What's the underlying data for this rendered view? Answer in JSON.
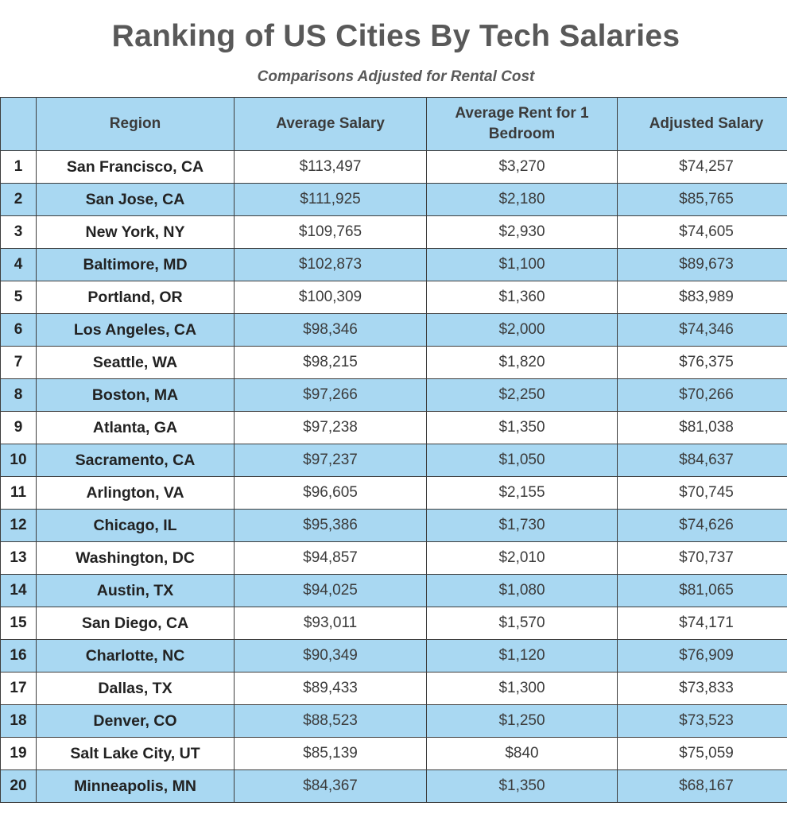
{
  "chart_data": {
    "type": "table",
    "title": "Ranking of US Cities By Tech Salaries",
    "subtitle": "Comparisons Adjusted for Rental Cost",
    "columns": [
      "",
      "Region",
      "Average Salary",
      "Average Rent for 1 Bedroom",
      "Adjusted Salary"
    ],
    "rows": [
      {
        "rank": "1",
        "region": "San Francisco, CA",
        "salary": "$113,497",
        "rent": "$3,270",
        "adjusted": "$74,257"
      },
      {
        "rank": "2",
        "region": "San Jose, CA",
        "salary": "$111,925",
        "rent": "$2,180",
        "adjusted": "$85,765"
      },
      {
        "rank": "3",
        "region": "New York, NY",
        "salary": "$109,765",
        "rent": "$2,930",
        "adjusted": "$74,605"
      },
      {
        "rank": "4",
        "region": "Baltimore, MD",
        "salary": "$102,873",
        "rent": "$1,100",
        "adjusted": "$89,673"
      },
      {
        "rank": "5",
        "region": "Portland, OR",
        "salary": "$100,309",
        "rent": "$1,360",
        "adjusted": "$83,989"
      },
      {
        "rank": "6",
        "region": "Los Angeles, CA",
        "salary": "$98,346",
        "rent": "$2,000",
        "adjusted": "$74,346"
      },
      {
        "rank": "7",
        "region": "Seattle, WA",
        "salary": "$98,215",
        "rent": "$1,820",
        "adjusted": "$76,375"
      },
      {
        "rank": "8",
        "region": "Boston, MA",
        "salary": "$97,266",
        "rent": "$2,250",
        "adjusted": "$70,266"
      },
      {
        "rank": "9",
        "region": "Atlanta, GA",
        "salary": "$97,238",
        "rent": "$1,350",
        "adjusted": "$81,038"
      },
      {
        "rank": "10",
        "region": "Sacramento, CA",
        "salary": "$97,237",
        "rent": "$1,050",
        "adjusted": "$84,637"
      },
      {
        "rank": "11",
        "region": "Arlington, VA",
        "salary": "$96,605",
        "rent": "$2,155",
        "adjusted": "$70,745"
      },
      {
        "rank": "12",
        "region": "Chicago, IL",
        "salary": "$95,386",
        "rent": "$1,730",
        "adjusted": "$74,626"
      },
      {
        "rank": "13",
        "region": "Washington, DC",
        "salary": "$94,857",
        "rent": "$2,010",
        "adjusted": "$70,737"
      },
      {
        "rank": "14",
        "region": "Austin, TX",
        "salary": "$94,025",
        "rent": "$1,080",
        "adjusted": "$81,065"
      },
      {
        "rank": "15",
        "region": "San Diego, CA",
        "salary": "$93,011",
        "rent": "$1,570",
        "adjusted": "$74,171"
      },
      {
        "rank": "16",
        "region": "Charlotte, NC",
        "salary": "$90,349",
        "rent": "$1,120",
        "adjusted": "$76,909"
      },
      {
        "rank": "17",
        "region": "Dallas, TX",
        "salary": "$89,433",
        "rent": "$1,300",
        "adjusted": "$73,833"
      },
      {
        "rank": "18",
        "region": "Denver, CO",
        "salary": "$88,523",
        "rent": "$1,250",
        "adjusted": "$73,523"
      },
      {
        "rank": "19",
        "region": "Salt Lake City, UT",
        "salary": "$85,139",
        "rent": "$840",
        "adjusted": "$75,059"
      },
      {
        "rank": "20",
        "region": "Minneapolis, MN",
        "salary": "$84,367",
        "rent": "$1,350",
        "adjusted": "$68,167"
      }
    ],
    "colors": {
      "header": "#a9d8f2",
      "alt_row": "#a9d8f2",
      "row": "#ffffff",
      "text": "#3b3b3b",
      "title": "#595959"
    }
  }
}
